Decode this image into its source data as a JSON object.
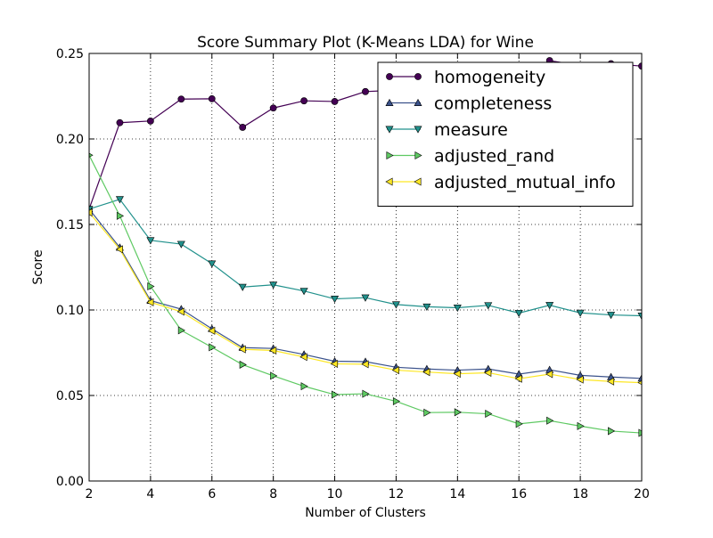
{
  "chart_data": {
    "type": "line",
    "title": "Score Summary Plot (K-Means LDA) for Wine",
    "xlabel": "Number of Clusters",
    "ylabel": "Score",
    "xlim": [
      2,
      20
    ],
    "ylim": [
      0.0,
      0.25
    ],
    "grid": true,
    "legend_position": "top-right",
    "x_ticks": [
      2,
      4,
      6,
      8,
      10,
      12,
      14,
      16,
      18,
      20
    ],
    "x_tick_labels": [
      "2",
      "4",
      "6",
      "8",
      "10",
      "12",
      "14",
      "16",
      "18",
      "20"
    ],
    "y_ticks": [
      0.0,
      0.05,
      0.1,
      0.15,
      0.2,
      0.25
    ],
    "y_tick_labels": [
      "0.00",
      "0.05",
      "0.10",
      "0.15",
      "0.20",
      "0.25"
    ],
    "x": [
      2,
      3,
      4,
      5,
      6,
      7,
      8,
      9,
      10,
      11,
      12,
      13,
      14,
      15,
      16,
      17,
      18,
      19,
      20
    ],
    "series": [
      {
        "name": "homogeneity",
        "color": "#440154",
        "marker": "circle",
        "values": [
          0.159,
          0.2095,
          0.2105,
          0.2233,
          0.2235,
          0.2068,
          0.2181,
          0.2223,
          0.2219,
          0.2277,
          0.2285,
          0.23,
          0.231,
          0.233,
          0.235,
          0.2458,
          0.243,
          0.244,
          0.2426
        ]
      },
      {
        "name": "completeness",
        "color": "#3b528b",
        "marker": "triangle-up",
        "values": [
          0.159,
          0.1365,
          0.1055,
          0.1005,
          0.089,
          0.078,
          0.0775,
          0.074,
          0.07,
          0.0698,
          0.0665,
          0.0655,
          0.0648,
          0.0655,
          0.0625,
          0.065,
          0.0618,
          0.0608,
          0.06
        ]
      },
      {
        "name": "measure",
        "color": "#21918c",
        "marker": "triangle-down",
        "values": [
          0.159,
          0.1647,
          0.1407,
          0.1385,
          0.1271,
          0.1134,
          0.1147,
          0.1111,
          0.1065,
          0.1072,
          0.1032,
          0.1019,
          0.1013,
          0.1027,
          0.0982,
          0.1028,
          0.0983,
          0.0971,
          0.0966
        ]
      },
      {
        "name": "adjusted_rand",
        "color": "#5ec962",
        "marker": "triangle-right",
        "values": [
          0.1905,
          0.155,
          0.1138,
          0.0881,
          0.0782,
          0.068,
          0.0615,
          0.0554,
          0.0505,
          0.051,
          0.0466,
          0.04,
          0.0402,
          0.0393,
          0.0334,
          0.0353,
          0.0321,
          0.0292,
          0.0281
        ]
      },
      {
        "name": "adjusted_mutual_info",
        "color": "#fde725",
        "marker": "triangle-left",
        "values": [
          0.157,
          0.1355,
          0.1045,
          0.099,
          0.0878,
          0.077,
          0.0763,
          0.0725,
          0.0685,
          0.0683,
          0.0648,
          0.0637,
          0.0627,
          0.0633,
          0.0598,
          0.0625,
          0.0593,
          0.0582,
          0.0575
        ]
      }
    ]
  }
}
